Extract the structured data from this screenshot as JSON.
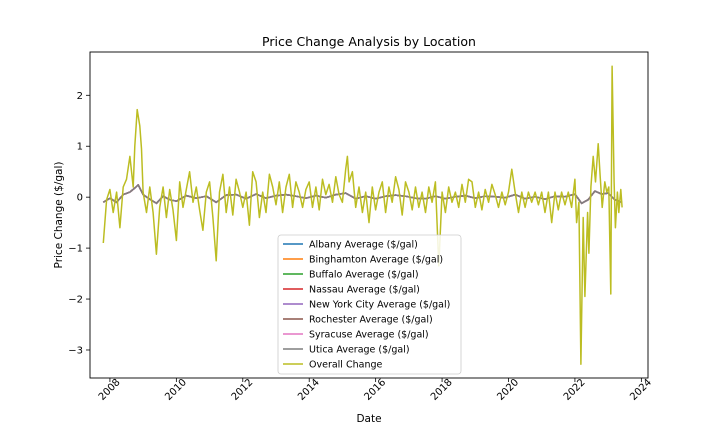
{
  "chart_data": {
    "type": "line",
    "title": "Price Change Analysis by Location",
    "xlabel": "Date",
    "ylabel": "Price Change ($/gal)",
    "xlim": [
      2007.4,
      2024.2
    ],
    "ylim": [
      -3.55,
      2.85
    ],
    "x_ticks": [
      2008,
      2010,
      2012,
      2014,
      2016,
      2018,
      2020,
      2022,
      2024
    ],
    "x_tick_labels": [
      "2008",
      "2010",
      "2012",
      "2014",
      "2016",
      "2018",
      "2020",
      "2022",
      "2024"
    ],
    "y_ticks": [
      2,
      1,
      0,
      -1,
      -2,
      -3
    ],
    "y_tick_labels": [
      "2",
      "1",
      "0",
      "−1",
      "−2",
      "−3"
    ],
    "grid": false,
    "legend_position": "lower center",
    "series": [
      {
        "name": "Albany Average ($/gal)",
        "color": "#1f77b4"
      },
      {
        "name": "Binghamton Average ($/gal)",
        "color": "#ff7f0e"
      },
      {
        "name": "Buffalo Average ($/gal)",
        "color": "#2ca02c"
      },
      {
        "name": "Nassau Average ($/gal)",
        "color": "#d62728"
      },
      {
        "name": "New York City Average ($/gal)",
        "color": "#9467bd"
      },
      {
        "name": "Rochester Average ($/gal)",
        "color": "#8c564b"
      },
      {
        "name": "Syracuse Average ($/gal)",
        "color": "#e377c2"
      },
      {
        "name": "Utica Average ($/gal)",
        "color": "#7f7f7f"
      },
      {
        "name": "Overall Change",
        "color": "#bcbd22"
      }
    ],
    "overall_change_points": [
      [
        2007.8,
        -0.9
      ],
      [
        2007.9,
        -0.05
      ],
      [
        2008.0,
        0.15
      ],
      [
        2008.1,
        -0.3
      ],
      [
        2008.2,
        0.1
      ],
      [
        2008.3,
        -0.6
      ],
      [
        2008.4,
        0.2
      ],
      [
        2008.5,
        0.35
      ],
      [
        2008.6,
        0.8
      ],
      [
        2008.7,
        0.2
      ],
      [
        2008.75,
        1.0
      ],
      [
        2008.82,
        1.72
      ],
      [
        2008.9,
        1.4
      ],
      [
        2008.95,
        0.95
      ],
      [
        2009.0,
        0.1
      ],
      [
        2009.1,
        -0.3
      ],
      [
        2009.2,
        0.2
      ],
      [
        2009.3,
        -0.3
      ],
      [
        2009.4,
        -1.12
      ],
      [
        2009.5,
        -0.2
      ],
      [
        2009.6,
        0.2
      ],
      [
        2009.7,
        -0.4
      ],
      [
        2009.8,
        0.15
      ],
      [
        2009.9,
        -0.25
      ],
      [
        2010.0,
        -0.85
      ],
      [
        2010.1,
        0.3
      ],
      [
        2010.2,
        -0.2
      ],
      [
        2010.3,
        0.15
      ],
      [
        2010.4,
        0.5
      ],
      [
        2010.5,
        -0.1
      ],
      [
        2010.6,
        0.2
      ],
      [
        2010.7,
        -0.25
      ],
      [
        2010.8,
        -0.65
      ],
      [
        2010.9,
        0.1
      ],
      [
        2011.0,
        0.3
      ],
      [
        2011.1,
        -0.4
      ],
      [
        2011.2,
        -1.25
      ],
      [
        2011.3,
        0.1
      ],
      [
        2011.4,
        0.45
      ],
      [
        2011.5,
        -0.3
      ],
      [
        2011.6,
        0.2
      ],
      [
        2011.7,
        -0.35
      ],
      [
        2011.8,
        0.35
      ],
      [
        2011.9,
        0.1
      ],
      [
        2012.0,
        -0.2
      ],
      [
        2012.1,
        0.1
      ],
      [
        2012.2,
        -0.55
      ],
      [
        2012.3,
        0.5
      ],
      [
        2012.4,
        0.3
      ],
      [
        2012.5,
        -0.4
      ],
      [
        2012.6,
        0.1
      ],
      [
        2012.7,
        -0.3
      ],
      [
        2012.8,
        0.45
      ],
      [
        2012.9,
        0.2
      ],
      [
        2013.0,
        -0.15
      ],
      [
        2013.1,
        0.3
      ],
      [
        2013.2,
        -0.3
      ],
      [
        2013.3,
        0.2
      ],
      [
        2013.4,
        0.45
      ],
      [
        2013.5,
        -0.2
      ],
      [
        2013.6,
        0.3
      ],
      [
        2013.7,
        0.1
      ],
      [
        2013.8,
        -0.2
      ],
      [
        2013.9,
        0.15
      ],
      [
        2014.0,
        0.3
      ],
      [
        2014.1,
        -0.2
      ],
      [
        2014.2,
        0.2
      ],
      [
        2014.3,
        -0.25
      ],
      [
        2014.4,
        0.35
      ],
      [
        2014.5,
        0.05
      ],
      [
        2014.6,
        0.25
      ],
      [
        2014.7,
        -0.1
      ],
      [
        2014.8,
        0.4
      ],
      [
        2014.9,
        0.05
      ],
      [
        2015.0,
        -0.1
      ],
      [
        2015.1,
        0.55
      ],
      [
        2015.15,
        0.8
      ],
      [
        2015.2,
        0.3
      ],
      [
        2015.3,
        0.5
      ],
      [
        2015.4,
        -0.2
      ],
      [
        2015.5,
        0.2
      ],
      [
        2015.6,
        -0.3
      ],
      [
        2015.7,
        0.1
      ],
      [
        2015.8,
        -0.5
      ],
      [
        2015.9,
        0.2
      ],
      [
        2016.0,
        -0.25
      ],
      [
        2016.1,
        0.1
      ],
      [
        2016.2,
        0.3
      ],
      [
        2016.3,
        -0.3
      ],
      [
        2016.4,
        0.2
      ],
      [
        2016.5,
        -0.1
      ],
      [
        2016.6,
        0.4
      ],
      [
        2016.7,
        0.15
      ],
      [
        2016.8,
        -0.35
      ],
      [
        2016.9,
        0.3
      ],
      [
        2017.0,
        0.1
      ],
      [
        2017.1,
        -0.25
      ],
      [
        2017.2,
        0.2
      ],
      [
        2017.3,
        -0.2
      ],
      [
        2017.4,
        0.1
      ],
      [
        2017.5,
        -0.3
      ],
      [
        2017.6,
        0.2
      ],
      [
        2017.7,
        -0.1
      ],
      [
        2017.8,
        0.3
      ],
      [
        2017.9,
        -1.35
      ],
      [
        2018.0,
        0.1
      ],
      [
        2018.1,
        -0.3
      ],
      [
        2018.2,
        0.2
      ],
      [
        2018.3,
        -0.1
      ],
      [
        2018.4,
        0.1
      ],
      [
        2018.5,
        -0.2
      ],
      [
        2018.6,
        0.25
      ],
      [
        2018.7,
        -0.1
      ],
      [
        2018.8,
        0.35
      ],
      [
        2018.9,
        0.3
      ],
      [
        2019.0,
        -0.2
      ],
      [
        2019.1,
        0.1
      ],
      [
        2019.2,
        -0.25
      ],
      [
        2019.3,
        0.15
      ],
      [
        2019.4,
        -0.1
      ],
      [
        2019.5,
        0.25
      ],
      [
        2019.6,
        0.05
      ],
      [
        2019.7,
        -0.2
      ],
      [
        2019.8,
        0.1
      ],
      [
        2019.9,
        -0.15
      ],
      [
        2020.0,
        0.1
      ],
      [
        2020.1,
        0.55
      ],
      [
        2020.2,
        0.1
      ],
      [
        2020.3,
        -0.3
      ],
      [
        2020.4,
        0.1
      ],
      [
        2020.5,
        -0.2
      ],
      [
        2020.6,
        0.1
      ],
      [
        2020.7,
        -0.1
      ],
      [
        2020.8,
        0.1
      ],
      [
        2020.9,
        -0.15
      ],
      [
        2021.0,
        0.1
      ],
      [
        2021.1,
        -0.3
      ],
      [
        2021.2,
        0.1
      ],
      [
        2021.3,
        -0.5
      ],
      [
        2021.4,
        0.1
      ],
      [
        2021.5,
        -0.25
      ],
      [
        2021.6,
        0.1
      ],
      [
        2021.7,
        -0.15
      ],
      [
        2021.8,
        0.1
      ],
      [
        2021.9,
        -0.2
      ],
      [
        2022.0,
        0.35
      ],
      [
        2022.05,
        -0.5
      ],
      [
        2022.12,
        -0.1
      ],
      [
        2022.18,
        -3.28
      ],
      [
        2022.25,
        -0.4
      ],
      [
        2022.3,
        -1.95
      ],
      [
        2022.38,
        -0.3
      ],
      [
        2022.42,
        -1.1
      ],
      [
        2022.48,
        0.2
      ],
      [
        2022.55,
        0.8
      ],
      [
        2022.62,
        0.3
      ],
      [
        2022.7,
        1.05
      ],
      [
        2022.76,
        0.4
      ],
      [
        2022.82,
        -0.2
      ],
      [
        2022.9,
        0.3
      ],
      [
        2022.96,
        0.1
      ],
      [
        2023.02,
        0.2
      ],
      [
        2023.08,
        -1.9
      ],
      [
        2023.12,
        2.57
      ],
      [
        2023.18,
        0.3
      ],
      [
        2023.22,
        -0.6
      ],
      [
        2023.28,
        0.1
      ],
      [
        2023.32,
        -0.3
      ],
      [
        2023.38,
        0.15
      ],
      [
        2023.42,
        -0.2
      ]
    ],
    "location_average_points": [
      [
        2007.8,
        -0.1
      ],
      [
        2008.0,
        -0.02
      ],
      [
        2008.2,
        -0.1
      ],
      [
        2008.4,
        0.05
      ],
      [
        2008.6,
        0.1
      ],
      [
        2008.75,
        0.18
      ],
      [
        2008.85,
        0.24
      ],
      [
        2009.0,
        0.05
      ],
      [
        2009.2,
        -0.04
      ],
      [
        2009.4,
        -0.12
      ],
      [
        2009.6,
        0.02
      ],
      [
        2009.8,
        -0.05
      ],
      [
        2010.0,
        -0.08
      ],
      [
        2010.3,
        0.03
      ],
      [
        2010.6,
        -0.02
      ],
      [
        2010.9,
        0.02
      ],
      [
        2011.2,
        -0.1
      ],
      [
        2011.5,
        0.04
      ],
      [
        2011.8,
        0.05
      ],
      [
        2012.1,
        -0.03
      ],
      [
        2012.4,
        0.06
      ],
      [
        2012.7,
        -0.02
      ],
      [
        2013.0,
        0.03
      ],
      [
        2013.3,
        0.05
      ],
      [
        2013.6,
        0.02
      ],
      [
        2013.9,
        -0.02
      ],
      [
        2014.2,
        0.03
      ],
      [
        2014.5,
        -0.01
      ],
      [
        2014.8,
        0.05
      ],
      [
        2015.1,
        0.08
      ],
      [
        2015.4,
        -0.03
      ],
      [
        2015.7,
        0.02
      ],
      [
        2016.0,
        -0.03
      ],
      [
        2016.3,
        0.02
      ],
      [
        2016.6,
        0.04
      ],
      [
        2016.9,
        0.02
      ],
      [
        2017.2,
        -0.02
      ],
      [
        2017.5,
        -0.03
      ],
      [
        2017.8,
        0.02
      ],
      [
        2018.1,
        -0.03
      ],
      [
        2018.4,
        0.01
      ],
      [
        2018.7,
        0.03
      ],
      [
        2019.0,
        -0.02
      ],
      [
        2019.3,
        0.02
      ],
      [
        2019.6,
        0.01
      ],
      [
        2019.9,
        -0.01
      ],
      [
        2020.2,
        0.05
      ],
      [
        2020.5,
        -0.03
      ],
      [
        2020.8,
        0.01
      ],
      [
        2021.1,
        -0.04
      ],
      [
        2021.4,
        0.02
      ],
      [
        2021.7,
        0.01
      ],
      [
        2022.0,
        0.06
      ],
      [
        2022.2,
        -0.12
      ],
      [
        2022.4,
        -0.05
      ],
      [
        2022.6,
        0.12
      ],
      [
        2022.8,
        0.06
      ],
      [
        2023.0,
        0.08
      ],
      [
        2023.2,
        -0.05
      ],
      [
        2023.42,
        -0.1
      ]
    ]
  }
}
